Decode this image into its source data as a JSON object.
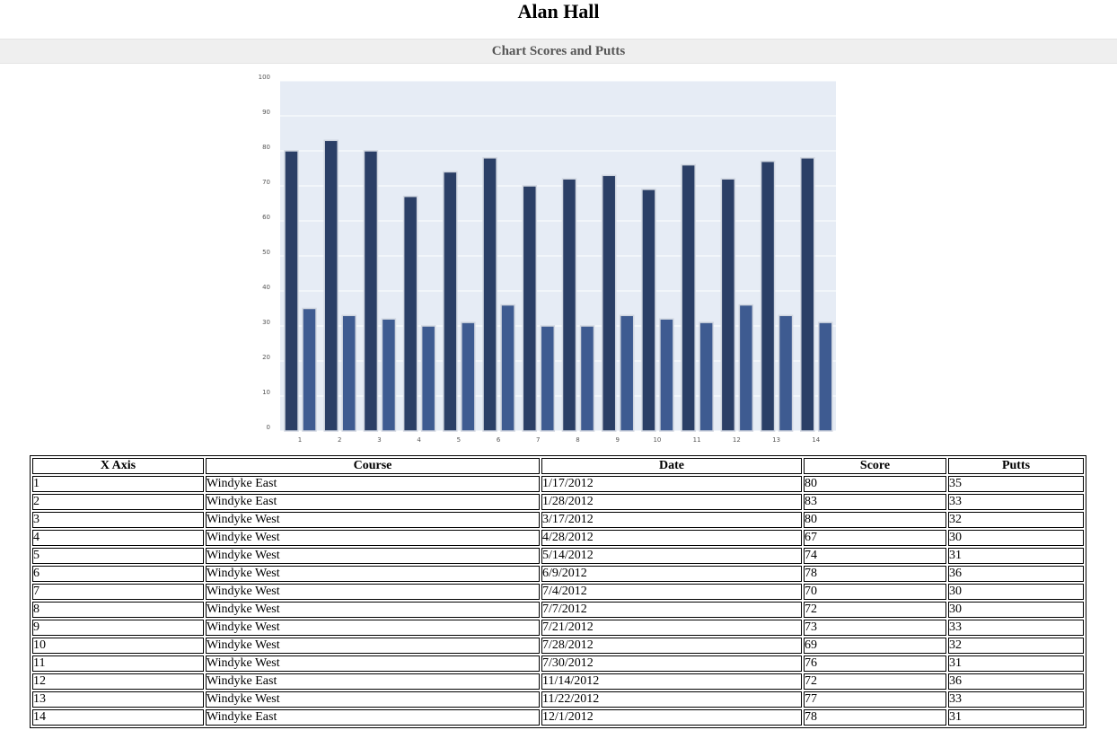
{
  "page": {
    "player_name": "Alan Hall",
    "section_title": "Chart Scores and Putts"
  },
  "colors": {
    "plot_background": "#e6ecf5",
    "score_bar": "#2b3f66",
    "putts_bar": "#3e5b91",
    "gridline": "#ffffff",
    "section_header_bg": "#efefef"
  },
  "chart_data": {
    "type": "bar",
    "categories": [
      "1",
      "2",
      "3",
      "4",
      "5",
      "6",
      "7",
      "8",
      "9",
      "10",
      "11",
      "12",
      "13",
      "14"
    ],
    "series": [
      {
        "values": [
          80,
          83,
          80,
          67,
          74,
          78,
          70,
          72,
          73,
          69,
          76,
          72,
          77,
          78
        ]
      },
      {
        "values": [
          35,
          33,
          32,
          30,
          31,
          36,
          30,
          30,
          33,
          32,
          31,
          36,
          33,
          31
        ]
      }
    ],
    "yticks": [
      0,
      10,
      20,
      30,
      40,
      50,
      60,
      70,
      80,
      90,
      100
    ],
    "ylim": [
      0,
      100
    ],
    "grid": true,
    "legend": "none"
  },
  "table": {
    "headers": [
      "X Axis",
      "Course",
      "Date",
      "Score",
      "Putts"
    ],
    "rows": [
      [
        "1",
        "Windyke East",
        "1/17/2012",
        "80",
        "35"
      ],
      [
        "2",
        "Windyke East",
        "1/28/2012",
        "83",
        "33"
      ],
      [
        "3",
        "Windyke West",
        "3/17/2012",
        "80",
        "32"
      ],
      [
        "4",
        "Windyke West",
        "4/28/2012",
        "67",
        "30"
      ],
      [
        "5",
        "Windyke West",
        "5/14/2012",
        "74",
        "31"
      ],
      [
        "6",
        "Windyke West",
        "6/9/2012",
        "78",
        "36"
      ],
      [
        "7",
        "Windyke West",
        "7/4/2012",
        "70",
        "30"
      ],
      [
        "8",
        "Windyke West",
        "7/7/2012",
        "72",
        "30"
      ],
      [
        "9",
        "Windyke West",
        "7/21/2012",
        "73",
        "33"
      ],
      [
        "10",
        "Windyke West",
        "7/28/2012",
        "69",
        "32"
      ],
      [
        "11",
        "Windyke West",
        "7/30/2012",
        "76",
        "31"
      ],
      [
        "12",
        "Windyke East",
        "11/14/2012",
        "72",
        "36"
      ],
      [
        "13",
        "Windyke West",
        "11/22/2012",
        "77",
        "33"
      ],
      [
        "14",
        "Windyke East",
        "12/1/2012",
        "78",
        "31"
      ]
    ]
  }
}
